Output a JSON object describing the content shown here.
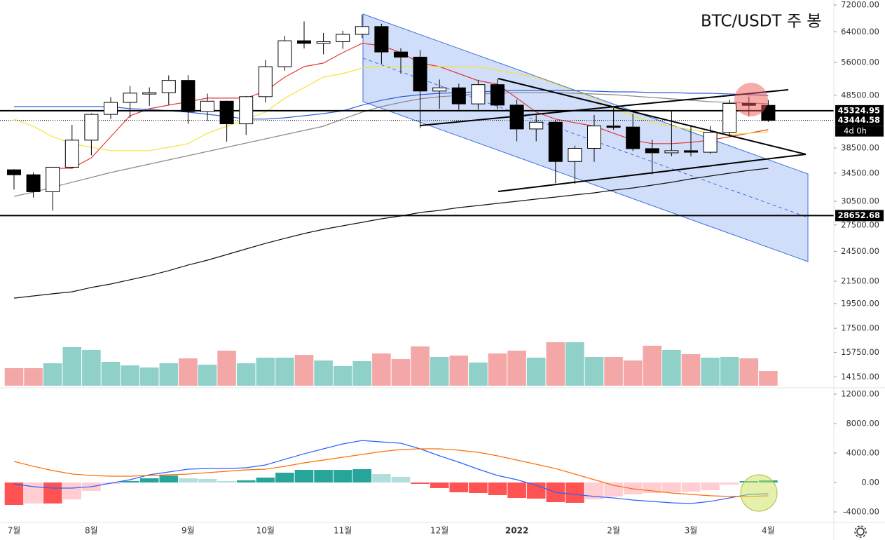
{
  "chart_data": {
    "type": "candlestick",
    "title": "BTC/USDT 주 봉",
    "log_scale": true,
    "categories": [
      "7월",
      null,
      null,
      null,
      "8월",
      null,
      null,
      null,
      null,
      "9월",
      null,
      null,
      null,
      "10월",
      null,
      null,
      null,
      "11월",
      null,
      null,
      null,
      null,
      "12월",
      null,
      null,
      null,
      "2022",
      null,
      null,
      null,
      null,
      "2월",
      null,
      null,
      null,
      "3월",
      null,
      null,
      null,
      "4월"
    ],
    "open": [
      35000,
      34250,
      31800,
      35400,
      39850,
      44600,
      47000,
      48950,
      49050,
      51750,
      45150,
      47250,
      42800,
      48200,
      54950,
      61550,
      60850,
      61300,
      63300,
      65500,
      58600,
      57300,
      49400,
      50100,
      46700,
      50800,
      46450,
      41850,
      43100,
      36300,
      38450,
      42400,
      42200,
      38400,
      37700,
      38050,
      37800,
      41250,
      46800,
      46400
    ],
    "high": [
      35100,
      34600,
      35400,
      42600,
      44800,
      48100,
      50500,
      50200,
      52900,
      52950,
      48850,
      47350,
      48350,
      56550,
      62900,
      67000,
      63700,
      64300,
      69000,
      66300,
      59600,
      59050,
      51950,
      51000,
      51900,
      52100,
      47600,
      44450,
      43500,
      38900,
      44500,
      45850,
      44750,
      39900,
      45400,
      42600,
      42400,
      47550,
      48200,
      47500
    ],
    "low": [
      32100,
      31000,
      29280,
      35200,
      37300,
      43700,
      43950,
      46300,
      46500,
      42800,
      43350,
      39600,
      40750,
      47000,
      54000,
      59500,
      58000,
      59400,
      62300,
      55600,
      53300,
      42000,
      45700,
      45500,
      45550,
      45600,
      39650,
      39650,
      33000,
      32900,
      36250,
      41700,
      38000,
      34300,
      37150,
      37150,
      37550,
      40450,
      44200,
      43150
    ],
    "close": [
      34250,
      31800,
      35400,
      39850,
      44600,
      47000,
      48950,
      49050,
      51750,
      45150,
      47250,
      42800,
      48200,
      54950,
      61550,
      60850,
      61300,
      63300,
      65500,
      58600,
      57300,
      49400,
      50100,
      46700,
      50800,
      46450,
      41850,
      43100,
      36300,
      38450,
      42400,
      42200,
      38400,
      37700,
      38050,
      37800,
      41250,
      46800,
      46400,
      43444.58
    ],
    "volume": [
      250,
      250,
      320,
      550,
      510,
      340,
      290,
      260,
      320,
      390,
      300,
      500,
      320,
      400,
      400,
      440,
      360,
      280,
      350,
      460,
      380,
      560,
      410,
      430,
      330,
      460,
      500,
      400,
      620,
      620,
      410,
      410,
      360,
      570,
      510,
      450,
      400,
      410,
      390,
      210
    ],
    "up_volume_color": "#8fd1c9",
    "down_volume_color": "#f4a7a7",
    "ylim": [
      13530,
      73560
    ],
    "yticks": [
      {
        "value": 72000,
        "label": "72000.00"
      },
      {
        "value": 64000,
        "label": "64000.00"
      },
      {
        "value": 56000,
        "label": "56000.00"
      },
      {
        "value": 48500,
        "label": "48500.00"
      },
      {
        "value": 38500,
        "label": "38500.00"
      },
      {
        "value": 34500,
        "label": "34500.00"
      },
      {
        "value": 30500,
        "label": "30500.00"
      },
      {
        "value": 27500,
        "label": "27500.00"
      },
      {
        "value": 24500,
        "label": "24500.00"
      },
      {
        "value": 21500,
        "label": "21500.00"
      },
      {
        "value": 19500,
        "label": "19500.00"
      },
      {
        "value": 17500,
        "label": "17500.00"
      },
      {
        "value": 15750,
        "label": "15750.00"
      },
      {
        "value": 14150,
        "label": "14150.00"
      }
    ],
    "price_labels": [
      45324.95,
      43444.58,
      28652.68
    ],
    "price_line_styles": [
      "solid",
      "dotted",
      "solid"
    ],
    "countdown": "4d 0h",
    "lines": [
      {
        "color": "#e53935",
        "values": [
          null,
          null,
          35230,
          35230,
          36890,
          40450,
          44350,
          45720,
          46450,
          47150,
          47890,
          47890,
          47890,
          49370,
          52500,
          54960,
          55830,
          58440,
          60830,
          60270,
          58440,
          55830,
          54960,
          53300,
          51690,
          50910,
          47890,
          45050,
          43690,
          43010,
          42350,
          41080,
          39850,
          39250,
          39250,
          39470,
          39850,
          40450,
          41080,
          41720
        ]
      },
      {
        "color": "#f5e13a",
        "values": [
          43690,
          42350,
          40450,
          39250,
          38630,
          38060,
          38060,
          38060,
          38630,
          39250,
          41080,
          42350,
          43690,
          45050,
          47890,
          50130,
          52500,
          53300,
          54640,
          54960,
          54960,
          54960,
          54960,
          54960,
          54960,
          54130,
          53300,
          52500,
          50910,
          49370,
          47890,
          45720,
          44350,
          43010,
          42350,
          41720,
          41080,
          40820,
          41080,
          41330
        ]
      },
      {
        "color": "#2f5fd8",
        "values": [
          46150,
          46150,
          46150,
          46150,
          46150,
          46150,
          45720,
          45580,
          45310,
          45050,
          44620,
          44210,
          43690,
          43690,
          43940,
          44350,
          44760,
          45310,
          46450,
          47440,
          48180,
          48620,
          48920,
          49070,
          49220,
          49370,
          49520,
          49520,
          49520,
          49520,
          49370,
          49220,
          49220,
          49070,
          49070,
          48920,
          48920,
          48770,
          48620,
          48470
        ]
      },
      {
        "color": "#8a8a8a",
        "values": [
          31160,
          31740,
          32440,
          33140,
          33850,
          34590,
          35230,
          35890,
          36550,
          37230,
          37920,
          38630,
          39340,
          40080,
          40820,
          41580,
          42350,
          43690,
          45050,
          46150,
          47010,
          47740,
          48180,
          48470,
          48770,
          48920,
          49070,
          49070,
          49070,
          48920,
          48770,
          48620,
          48320,
          48020,
          47740,
          47440,
          47150,
          47010,
          46860,
          46720
        ]
      },
      {
        "color": "#111111",
        "values": [
          19970,
          20160,
          20350,
          20530,
          20920,
          21240,
          21640,
          22040,
          22520,
          23080,
          23570,
          24160,
          24760,
          25370,
          25930,
          26490,
          26980,
          27400,
          27820,
          28250,
          28600,
          29040,
          29310,
          29670,
          29940,
          30220,
          30500,
          30790,
          31070,
          31360,
          31640,
          32030,
          32330,
          32730,
          33140,
          33650,
          34060,
          34480,
          34910,
          35230
        ]
      }
    ],
    "macd": {
      "ylim": [
        -5430,
        12860
      ],
      "yticks": [
        {
          "value": 12000,
          "label": "12000.00"
        },
        {
          "value": 8000,
          "label": "8000.00"
        },
        {
          "value": 4000,
          "label": "4000.00"
        },
        {
          "value": 0,
          "label": "0.00"
        },
        {
          "value": -4000,
          "label": "-4000.00"
        }
      ],
      "macd_color": "#2962ff",
      "signal_color": "#ff6d00",
      "histogram_colors": [
        "#26a69a",
        "#b2dfdb",
        "#ffcdd2",
        "#ff5252"
      ],
      "macd": [
        -190,
        -570,
        -760,
        -760,
        -570,
        -100,
        380,
        1050,
        1430,
        1810,
        1900,
        1900,
        2000,
        2380,
        3150,
        3900,
        4570,
        5240,
        5710,
        5520,
        5330,
        4570,
        3620,
        2760,
        1810,
        950,
        380,
        -380,
        -1330,
        -1620,
        -1900,
        -2100,
        -2380,
        -2570,
        -2760,
        -2860,
        -2570,
        -2100,
        -1620,
        -1520
      ],
      "signal": [
        2860,
        2200,
        1620,
        1150,
        950,
        860,
        860,
        950,
        1050,
        1140,
        1330,
        1520,
        1710,
        1810,
        2190,
        2670,
        3050,
        3430,
        3810,
        4190,
        4480,
        4570,
        4570,
        4380,
        4100,
        3620,
        3050,
        2480,
        1900,
        1140,
        380,
        -380,
        -860,
        -1140,
        -1430,
        -1620,
        -1800,
        -1900,
        -1900,
        -1810
      ],
      "histogram": [
        -3050,
        -2850,
        -2850,
        -2300,
        -1150,
        -200,
        200,
        570,
        950,
        570,
        480,
        200,
        290,
        670,
        1330,
        1710,
        1710,
        1710,
        1810,
        1140,
        760,
        -190,
        -760,
        -1330,
        -1430,
        -1710,
        -2100,
        -2190,
        -2670,
        -2760,
        -2290,
        -1900,
        -1620,
        -1430,
        -1330,
        -1240,
        -1050,
        -290,
        190,
        290
      ]
    }
  }
}
